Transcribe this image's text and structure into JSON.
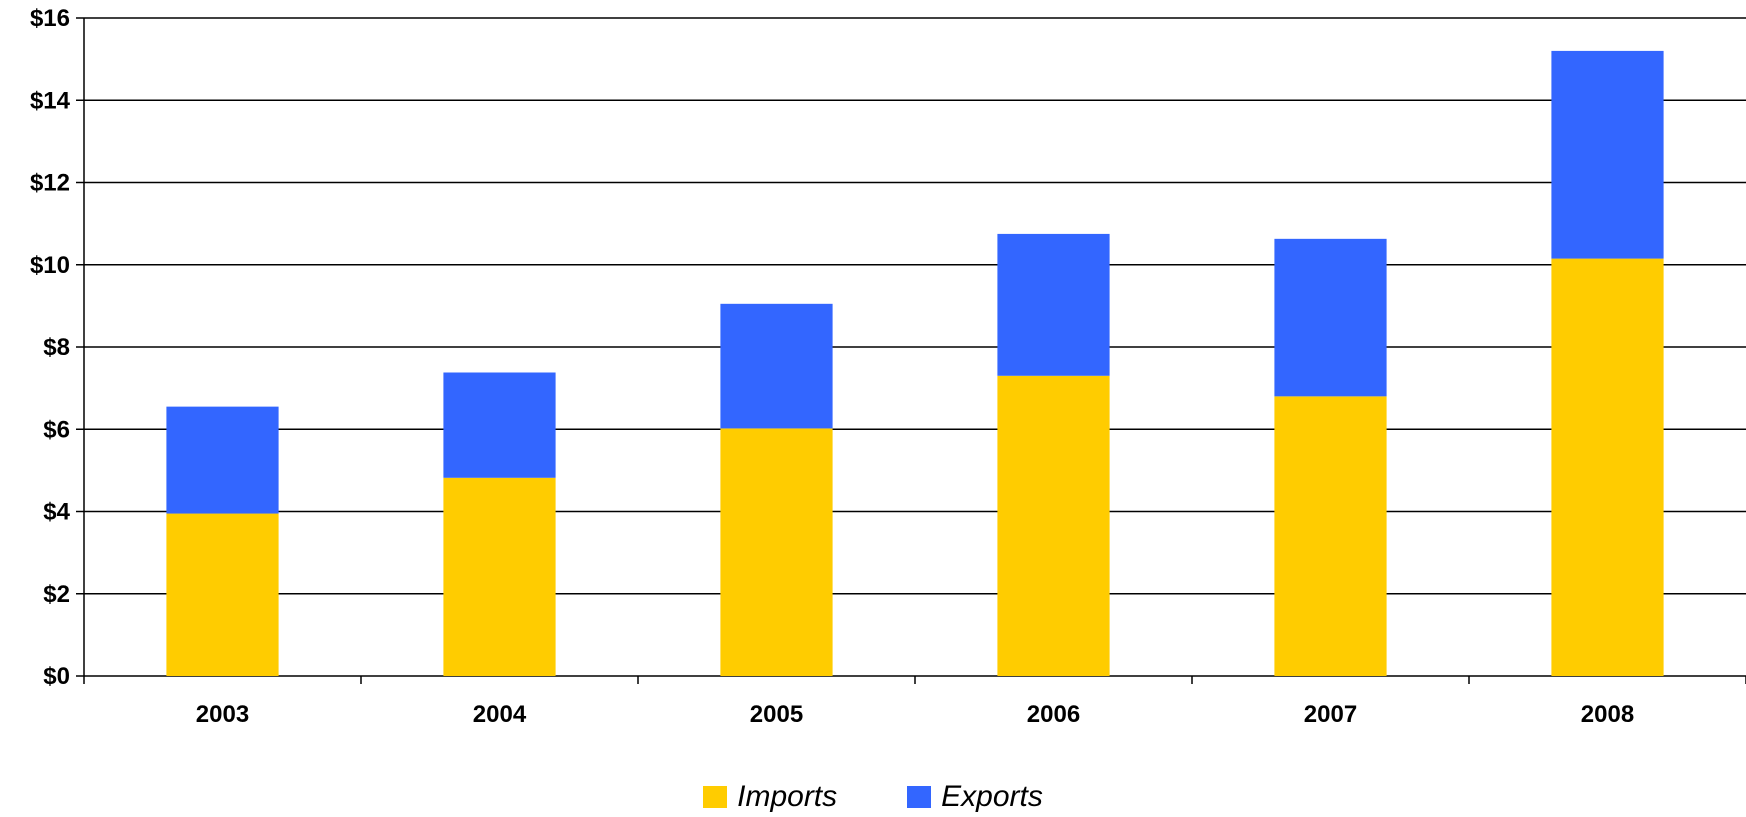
{
  "chart_data": {
    "type": "bar",
    "stacked": true,
    "categories": [
      "2003",
      "2004",
      "2005",
      "2006",
      "2007",
      "2008"
    ],
    "series": [
      {
        "name": "Imports",
        "color": "#FFCC00",
        "values": [
          3.95,
          4.82,
          6.02,
          7.3,
          6.8,
          10.15
        ]
      },
      {
        "name": "Exports",
        "color": "#3366FF",
        "values": [
          2.6,
          2.56,
          3.03,
          3.45,
          3.83,
          5.05
        ]
      }
    ],
    "ylim": [
      0,
      16
    ],
    "yticks": [
      0,
      2,
      4,
      6,
      8,
      10,
      12,
      14,
      16
    ],
    "ytick_labels": [
      "$0",
      "$2",
      "$4",
      "$6",
      "$8",
      "$10",
      "$12",
      "$14",
      "$16"
    ],
    "grid": true,
    "legend_position": "bottom-center",
    "title": "",
    "xlabel": "",
    "ylabel": ""
  }
}
